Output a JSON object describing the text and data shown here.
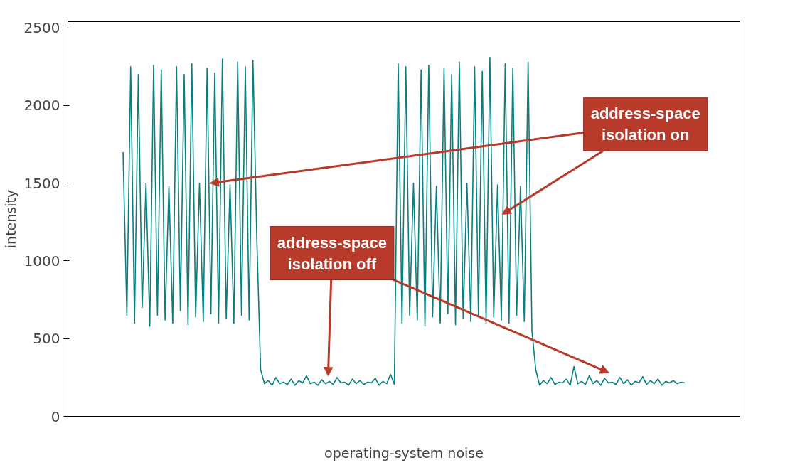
{
  "chart_data": {
    "type": "line",
    "xlabel": "operating-system noise",
    "ylabel": "intensity",
    "ylim": [
      0,
      2540
    ],
    "yticks": [
      0,
      500,
      1000,
      1500,
      2000,
      2500
    ],
    "color": "#0a7f7f",
    "categories": [
      null,
      null,
      null,
      null,
      null,
      null,
      null,
      null,
      null,
      null,
      null,
      null,
      null,
      null,
      null,
      null,
      null,
      null,
      null,
      null,
      null,
      null,
      null,
      null,
      null,
      null,
      null,
      null,
      null,
      null,
      null,
      null,
      null,
      null,
      null,
      null,
      null,
      null,
      null,
      null,
      null,
      null,
      null,
      null,
      null,
      null,
      null,
      null,
      null,
      null,
      null,
      null,
      null,
      null,
      null,
      null,
      null,
      null,
      null,
      null,
      null,
      null,
      null,
      null,
      null,
      null,
      null,
      null,
      null,
      null,
      null,
      null,
      null,
      null,
      null,
      null,
      null,
      null,
      null,
      null,
      null,
      null,
      null,
      null,
      null,
      null,
      null,
      null,
      null,
      null,
      null,
      null,
      null,
      null,
      null,
      null,
      null,
      null,
      null,
      null,
      null,
      null,
      null,
      null,
      null,
      null,
      null,
      null,
      null,
      null,
      null,
      null,
      null,
      null,
      null,
      null,
      null,
      null,
      null,
      null,
      null,
      null,
      null,
      null,
      null,
      null,
      null,
      null,
      null,
      null,
      null,
      null,
      null,
      null,
      null,
      null,
      null,
      null,
      null,
      null,
      null,
      null,
      null,
      null,
      null,
      null,
      null,
      null
    ],
    "values": [
      1700,
      650,
      2250,
      600,
      2200,
      700,
      1500,
      580,
      2260,
      650,
      2230,
      620,
      1480,
      600,
      2250,
      680,
      2200,
      590,
      2270,
      640,
      1500,
      610,
      2240,
      660,
      2210,
      600,
      2300,
      630,
      1490,
      600,
      2280,
      650,
      2250,
      620,
      2290,
      1150,
      300,
      210,
      230,
      200,
      250,
      210,
      220,
      205,
      240,
      200,
      230,
      215,
      260,
      210,
      220,
      200,
      235,
      210,
      225,
      205,
      250,
      215,
      220,
      200,
      240,
      210,
      230,
      205,
      220,
      215,
      245,
      200,
      225,
      210,
      270,
      205,
      2270,
      600,
      2250,
      650,
      1500,
      620,
      2230,
      580,
      2260,
      640,
      1480,
      600,
      2240,
      660,
      2200,
      590,
      2280,
      630,
      1500,
      610,
      2250,
      650,
      2220,
      600,
      2310,
      640,
      1490,
      620,
      2270,
      600,
      2240,
      650,
      1480,
      610,
      2280,
      550,
      300,
      200,
      230,
      210,
      250,
      205,
      220,
      215,
      240,
      200,
      320,
      210,
      225,
      205,
      260,
      210,
      230,
      200,
      245,
      215,
      220,
      205,
      250,
      210,
      235,
      200,
      225,
      215,
      255,
      205,
      230,
      210,
      240,
      200,
      225,
      215,
      230,
      210,
      220,
      215
    ],
    "annotations": [
      "address-space isolation on",
      "address-space isolation off"
    ]
  }
}
